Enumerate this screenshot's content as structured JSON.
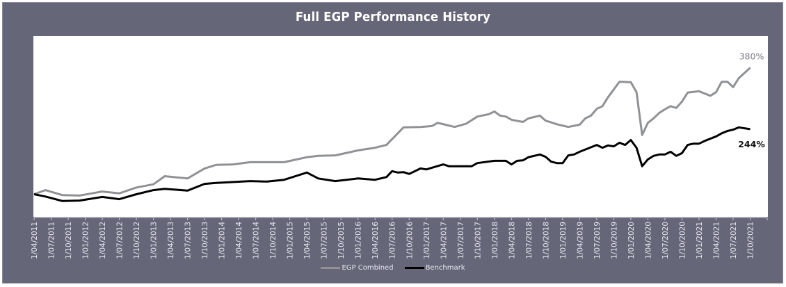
{
  "chart_data": {
    "type": "line",
    "title": "Full EGP Performance History",
    "xlabel": "",
    "ylabel": "",
    "ylim": [
      50,
      450
    ],
    "grid": false,
    "legend_position": "bottom-center",
    "x_start": "2011-04",
    "x_tick_labels": [
      "1/04/2011",
      "1/07/2011",
      "1/10/2011",
      "1/01/2012",
      "1/04/2012",
      "1/07/2012",
      "1/10/2012",
      "1/01/2013",
      "1/04/2013",
      "1/07/2013",
      "1/10/2013",
      "1/01/2014",
      "1/04/2014",
      "1/07/2014",
      "1/10/2014",
      "1/01/2015",
      "1/04/2015",
      "1/07/2015",
      "1/10/2015",
      "1/01/2016",
      "1/04/2016",
      "1/07/2016",
      "1/10/2016",
      "1/01/2017",
      "1/04/2017",
      "1/07/2017",
      "1/10/2017",
      "1/01/2018",
      "1/04/2018",
      "1/07/2018",
      "1/10/2018",
      "1/01/2019",
      "1/04/2019",
      "1/07/2019",
      "1/10/2019",
      "1/01/2020",
      "1/04/2020",
      "1/07/2020",
      "1/10/2020",
      "1/01/2021",
      "1/04/2021",
      "1/07/2021",
      "1/10/2021"
    ],
    "x_domain_months": [
      0,
      129
    ],
    "series": [
      {
        "name": "EGP Combined",
        "color": "#8f9194",
        "end_label": "380%",
        "end_label_color": "#7a7c8c",
        "points": [
          [
            0,
            100
          ],
          [
            2,
            109
          ],
          [
            5,
            98
          ],
          [
            8,
            97
          ],
          [
            12,
            106
          ],
          [
            15,
            102
          ],
          [
            18,
            115
          ],
          [
            21,
            122
          ],
          [
            23,
            140
          ],
          [
            27,
            135
          ],
          [
            30,
            157
          ],
          [
            32,
            165
          ],
          [
            35,
            166
          ],
          [
            38,
            171
          ],
          [
            41,
            171
          ],
          [
            44,
            171
          ],
          [
            48,
            182
          ],
          [
            50,
            185
          ],
          [
            53,
            186
          ],
          [
            57,
            197
          ],
          [
            60,
            203
          ],
          [
            62,
            209
          ],
          [
            65,
            248
          ],
          [
            68,
            249
          ],
          [
            70,
            251
          ],
          [
            71,
            258
          ],
          [
            74,
            249
          ],
          [
            76,
            256
          ],
          [
            78,
            272
          ],
          [
            80,
            277
          ],
          [
            81,
            283
          ],
          [
            82,
            274
          ],
          [
            83,
            272
          ],
          [
            84,
            265
          ],
          [
            86,
            260
          ],
          [
            87,
            268
          ],
          [
            89,
            274
          ],
          [
            90,
            263
          ],
          [
            92,
            255
          ],
          [
            94,
            249
          ],
          [
            96,
            254
          ],
          [
            97,
            268
          ],
          [
            98,
            274
          ],
          [
            99,
            289
          ],
          [
            100,
            295
          ],
          [
            101,
            315
          ],
          [
            103,
            349
          ],
          [
            105,
            348
          ],
          [
            106,
            326
          ],
          [
            107,
            231
          ],
          [
            108,
            258
          ],
          [
            109,
            268
          ],
          [
            110,
            280
          ],
          [
            111,
            288
          ],
          [
            112,
            295
          ],
          [
            113,
            291
          ],
          [
            114,
            305
          ],
          [
            115,
            325
          ],
          [
            117,
            328
          ],
          [
            118,
            323
          ],
          [
            119,
            318
          ],
          [
            120,
            326
          ],
          [
            121,
            349
          ],
          [
            122,
            349
          ],
          [
            123,
            337
          ],
          [
            124,
            357
          ],
          [
            126,
            380
          ]
        ]
      },
      {
        "name": "Benchmark",
        "color": "#000000",
        "end_label": "244%",
        "end_label_color": "#111111",
        "points": [
          [
            0,
            100
          ],
          [
            2,
            95
          ],
          [
            5,
            85
          ],
          [
            8,
            86
          ],
          [
            12,
            94
          ],
          [
            15,
            89
          ],
          [
            18,
            100
          ],
          [
            21,
            109
          ],
          [
            23,
            112
          ],
          [
            27,
            108
          ],
          [
            30,
            123
          ],
          [
            32,
            125
          ],
          [
            38,
            129
          ],
          [
            41,
            128
          ],
          [
            44,
            132
          ],
          [
            48,
            148
          ],
          [
            50,
            135
          ],
          [
            53,
            129
          ],
          [
            57,
            135
          ],
          [
            60,
            132
          ],
          [
            62,
            138
          ],
          [
            63,
            151
          ],
          [
            64,
            148
          ],
          [
            65,
            149
          ],
          [
            66,
            145
          ],
          [
            68,
            157
          ],
          [
            69,
            155
          ],
          [
            72,
            166
          ],
          [
            73,
            162
          ],
          [
            77,
            162
          ],
          [
            78,
            169
          ],
          [
            81,
            174
          ],
          [
            83,
            174
          ],
          [
            84,
            166
          ],
          [
            85,
            174
          ],
          [
            86,
            175
          ],
          [
            87,
            182
          ],
          [
            89,
            188
          ],
          [
            90,
            183
          ],
          [
            91,
            172
          ],
          [
            92,
            169
          ],
          [
            93,
            169
          ],
          [
            94,
            186
          ],
          [
            95,
            188
          ],
          [
            96,
            194
          ],
          [
            99,
            209
          ],
          [
            100,
            203
          ],
          [
            101,
            208
          ],
          [
            102,
            206
          ],
          [
            103,
            214
          ],
          [
            104,
            209
          ],
          [
            105,
            220
          ],
          [
            106,
            203
          ],
          [
            107,
            162
          ],
          [
            108,
            177
          ],
          [
            109,
            185
          ],
          [
            110,
            188
          ],
          [
            111,
            188
          ],
          [
            112,
            194
          ],
          [
            113,
            185
          ],
          [
            114,
            191
          ],
          [
            115,
            209
          ],
          [
            116,
            212
          ],
          [
            117,
            212
          ],
          [
            118,
            218
          ],
          [
            120,
            228
          ],
          [
            121,
            235
          ],
          [
            122,
            240
          ],
          [
            123,
            243
          ],
          [
            124,
            248
          ],
          [
            126,
            244
          ]
        ]
      }
    ]
  },
  "colors": {
    "frame_background": "#656779",
    "plot_background": "#ffffff",
    "axis_line": "#c9cbd6",
    "title_text": "#ffffff"
  }
}
